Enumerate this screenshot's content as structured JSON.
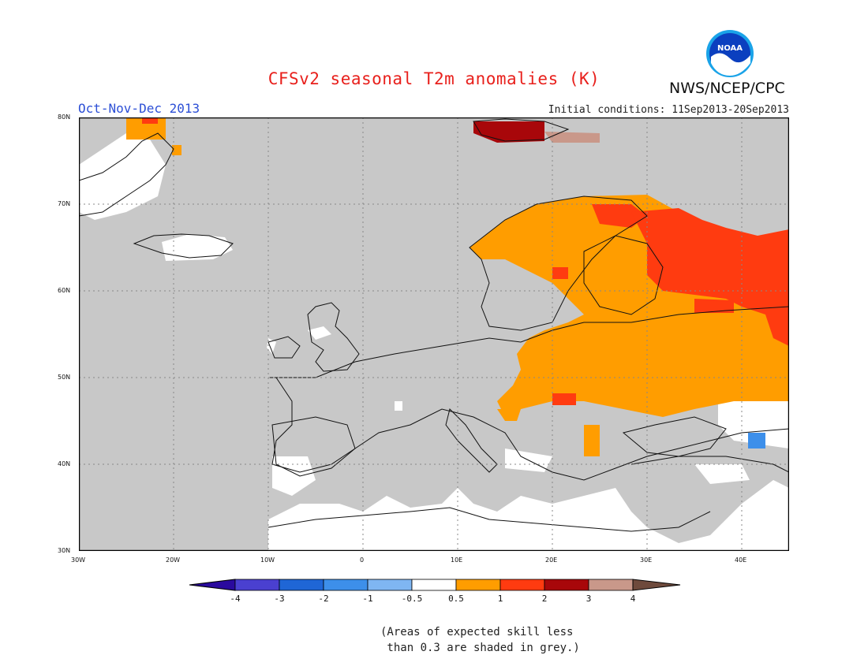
{
  "header": {
    "title": "CFSv2 seasonal T2m anomalies (K)",
    "period": "Oct-Nov-Dec 2013",
    "initial_conditions": "Initial conditions: 11Sep2013-20Sep2013",
    "agency": "NWS/NCEP/CPC",
    "logo_text": "NOAA"
  },
  "map": {
    "lon_range": [
      -30,
      45
    ],
    "lat_range": [
      30,
      80
    ],
    "lon_ticks": [
      "30W",
      "20W",
      "10W",
      "0",
      "10E",
      "20E",
      "30E",
      "40E"
    ],
    "lat_ticks": [
      "80N",
      "70N",
      "60N",
      "50N",
      "40N",
      "30N"
    ],
    "background_grey_label": "Areas of expected skill less than 0.3 are shaded in grey"
  },
  "colorbar": {
    "ticks": [
      "-4",
      "-3",
      "-2",
      "-1",
      "-0.5",
      "0.5",
      "1",
      "2",
      "3",
      "4"
    ],
    "colors": [
      "#2a0a9e",
      "#4a40d0",
      "#1f66d6",
      "#3d8fea",
      "#7fb6f2",
      "#ffffff",
      "#ff9d00",
      "#ff3b10",
      "#a8070a",
      "#c9988a",
      "#6e4a3c"
    ]
  },
  "skill_note": {
    "line1": "(Areas of expected skill less",
    "line2": " than 0.3 are shaded in grey.)"
  }
}
